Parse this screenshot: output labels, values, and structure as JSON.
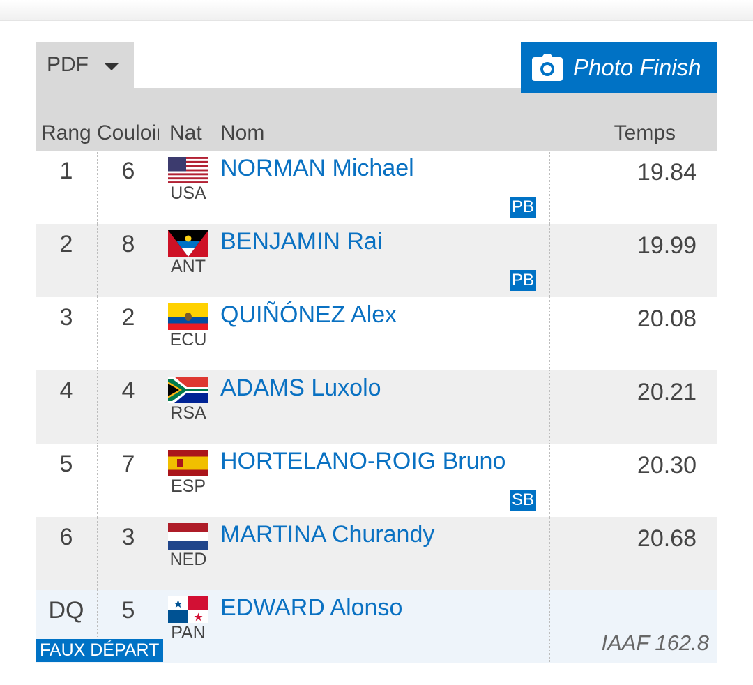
{
  "toolbar": {
    "pdf_label": "PDF",
    "photo_finish_label": "Photo Finish"
  },
  "colors": {
    "accent": "#0072c5",
    "header_bg": "#d9d9d9",
    "alt_row_bg": "#efefef",
    "dq_row_bg": "#eef4fa",
    "link": "#0a71c2"
  },
  "table": {
    "headers": {
      "rank": "Rang",
      "lane": "Couloir",
      "nat": "Nat",
      "name": "Nom",
      "time": "Temps"
    },
    "rows": [
      {
        "rank": "1",
        "lane": "6",
        "nat": "USA",
        "flag": "usa-flag-icon",
        "name": "NORMAN Michael",
        "time": "19.84",
        "badge": "PB",
        "note": "",
        "rule": ""
      },
      {
        "rank": "2",
        "lane": "8",
        "nat": "ANT",
        "flag": "antigua-flag-icon",
        "name": "BENJAMIN Rai",
        "time": "19.99",
        "badge": "PB",
        "note": "",
        "rule": ""
      },
      {
        "rank": "3",
        "lane": "2",
        "nat": "ECU",
        "flag": "ecuador-flag-icon",
        "name": "QUIÑÓNEZ Alex",
        "time": "20.08",
        "badge": "",
        "note": "",
        "rule": ""
      },
      {
        "rank": "4",
        "lane": "4",
        "nat": "RSA",
        "flag": "south-africa-flag-icon",
        "name": "ADAMS Luxolo",
        "time": "20.21",
        "badge": "",
        "note": "",
        "rule": ""
      },
      {
        "rank": "5",
        "lane": "7",
        "nat": "ESP",
        "flag": "spain-flag-icon",
        "name": "HORTELANO-ROIG Bruno",
        "time": "20.30",
        "badge": "SB",
        "note": "",
        "rule": ""
      },
      {
        "rank": "6",
        "lane": "3",
        "nat": "NED",
        "flag": "netherlands-flag-icon",
        "name": "MARTINA Churandy",
        "time": "20.68",
        "badge": "",
        "note": "",
        "rule": ""
      },
      {
        "rank": "DQ",
        "lane": "5",
        "nat": "PAN",
        "flag": "panama-flag-icon",
        "name": "EDWARD Alonso",
        "time": "",
        "badge": "",
        "note": "FAUX DÉPART",
        "rule": "IAAF 162.8"
      }
    ]
  }
}
